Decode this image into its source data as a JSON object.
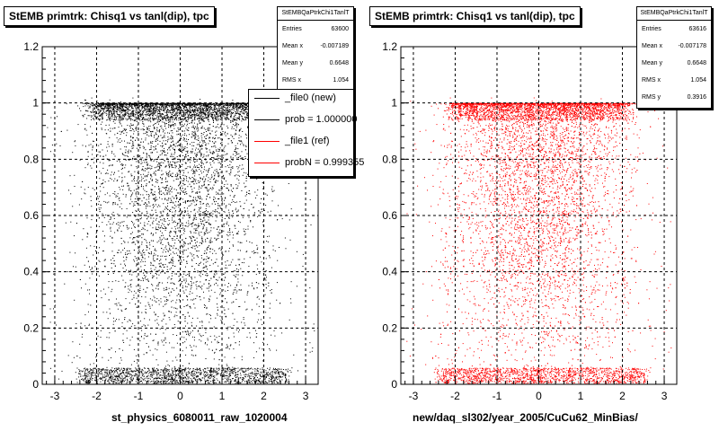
{
  "chart_data": [
    {
      "type": "scatter",
      "title": "StEMB primtrk: Chisq1 vs tanl(dip), tpc",
      "xlabel": "st_physics_6080011_raw_1020004",
      "ylabel": "",
      "xlim": [
        -3.3,
        3.3
      ],
      "ylim": [
        0,
        1.2
      ],
      "x_ticks": [
        -3,
        -2,
        -1,
        0,
        1,
        2,
        3
      ],
      "y_ticks": [
        0,
        0.2,
        0.4,
        0.6,
        0.8,
        1,
        1.2
      ],
      "grid": true,
      "marker_color": "#000000",
      "stats": {
        "name": "StEMBQaPtrkChi1TanlT",
        "rows": [
          {
            "label": "Entries",
            "value": "63600"
          },
          {
            "label": "Mean x",
            "value": "-0.007189"
          },
          {
            "label": "Mean y",
            "value": "0.6648"
          },
          {
            "label": "RMS x",
            "value": "1.054"
          }
        ]
      },
      "legend": {
        "placement": "top-right",
        "entries": [
          {
            "label": "_file0 (new)",
            "color": "#000000"
          },
          {
            "label": "prob = 1.000000",
            "color": "#000000"
          },
          {
            "label": "_file1 (ref)",
            "color": "#ff0000"
          },
          {
            "label": "probN = 0.999355",
            "color": "#ff0000"
          }
        ]
      }
    },
    {
      "type": "scatter",
      "title": "StEMB primtrk: Chisq1 vs tanl(dip), tpc",
      "xlabel": "new/daq_sl302/year_2005/CuCu62_MinBias/",
      "ylabel": "",
      "xlim": [
        -3.3,
        3.3
      ],
      "ylim": [
        0,
        1.2
      ],
      "x_ticks": [
        -3,
        -2,
        -1,
        0,
        1,
        2,
        3
      ],
      "y_ticks": [
        0,
        0.2,
        0.4,
        0.6,
        0.8,
        1,
        1.2
      ],
      "grid": true,
      "marker_color": "#ff0000",
      "stats": {
        "name": "StEMBQaPtrkChi1TanlT",
        "rows": [
          {
            "label": "Entries",
            "value": "63616"
          },
          {
            "label": "Mean x",
            "value": "-0.007178"
          },
          {
            "label": "Mean y",
            "value": "0.6648"
          },
          {
            "label": "RMS x",
            "value": "1.054"
          },
          {
            "label": "RMS y",
            "value": "0.3916"
          }
        ]
      }
    }
  ]
}
